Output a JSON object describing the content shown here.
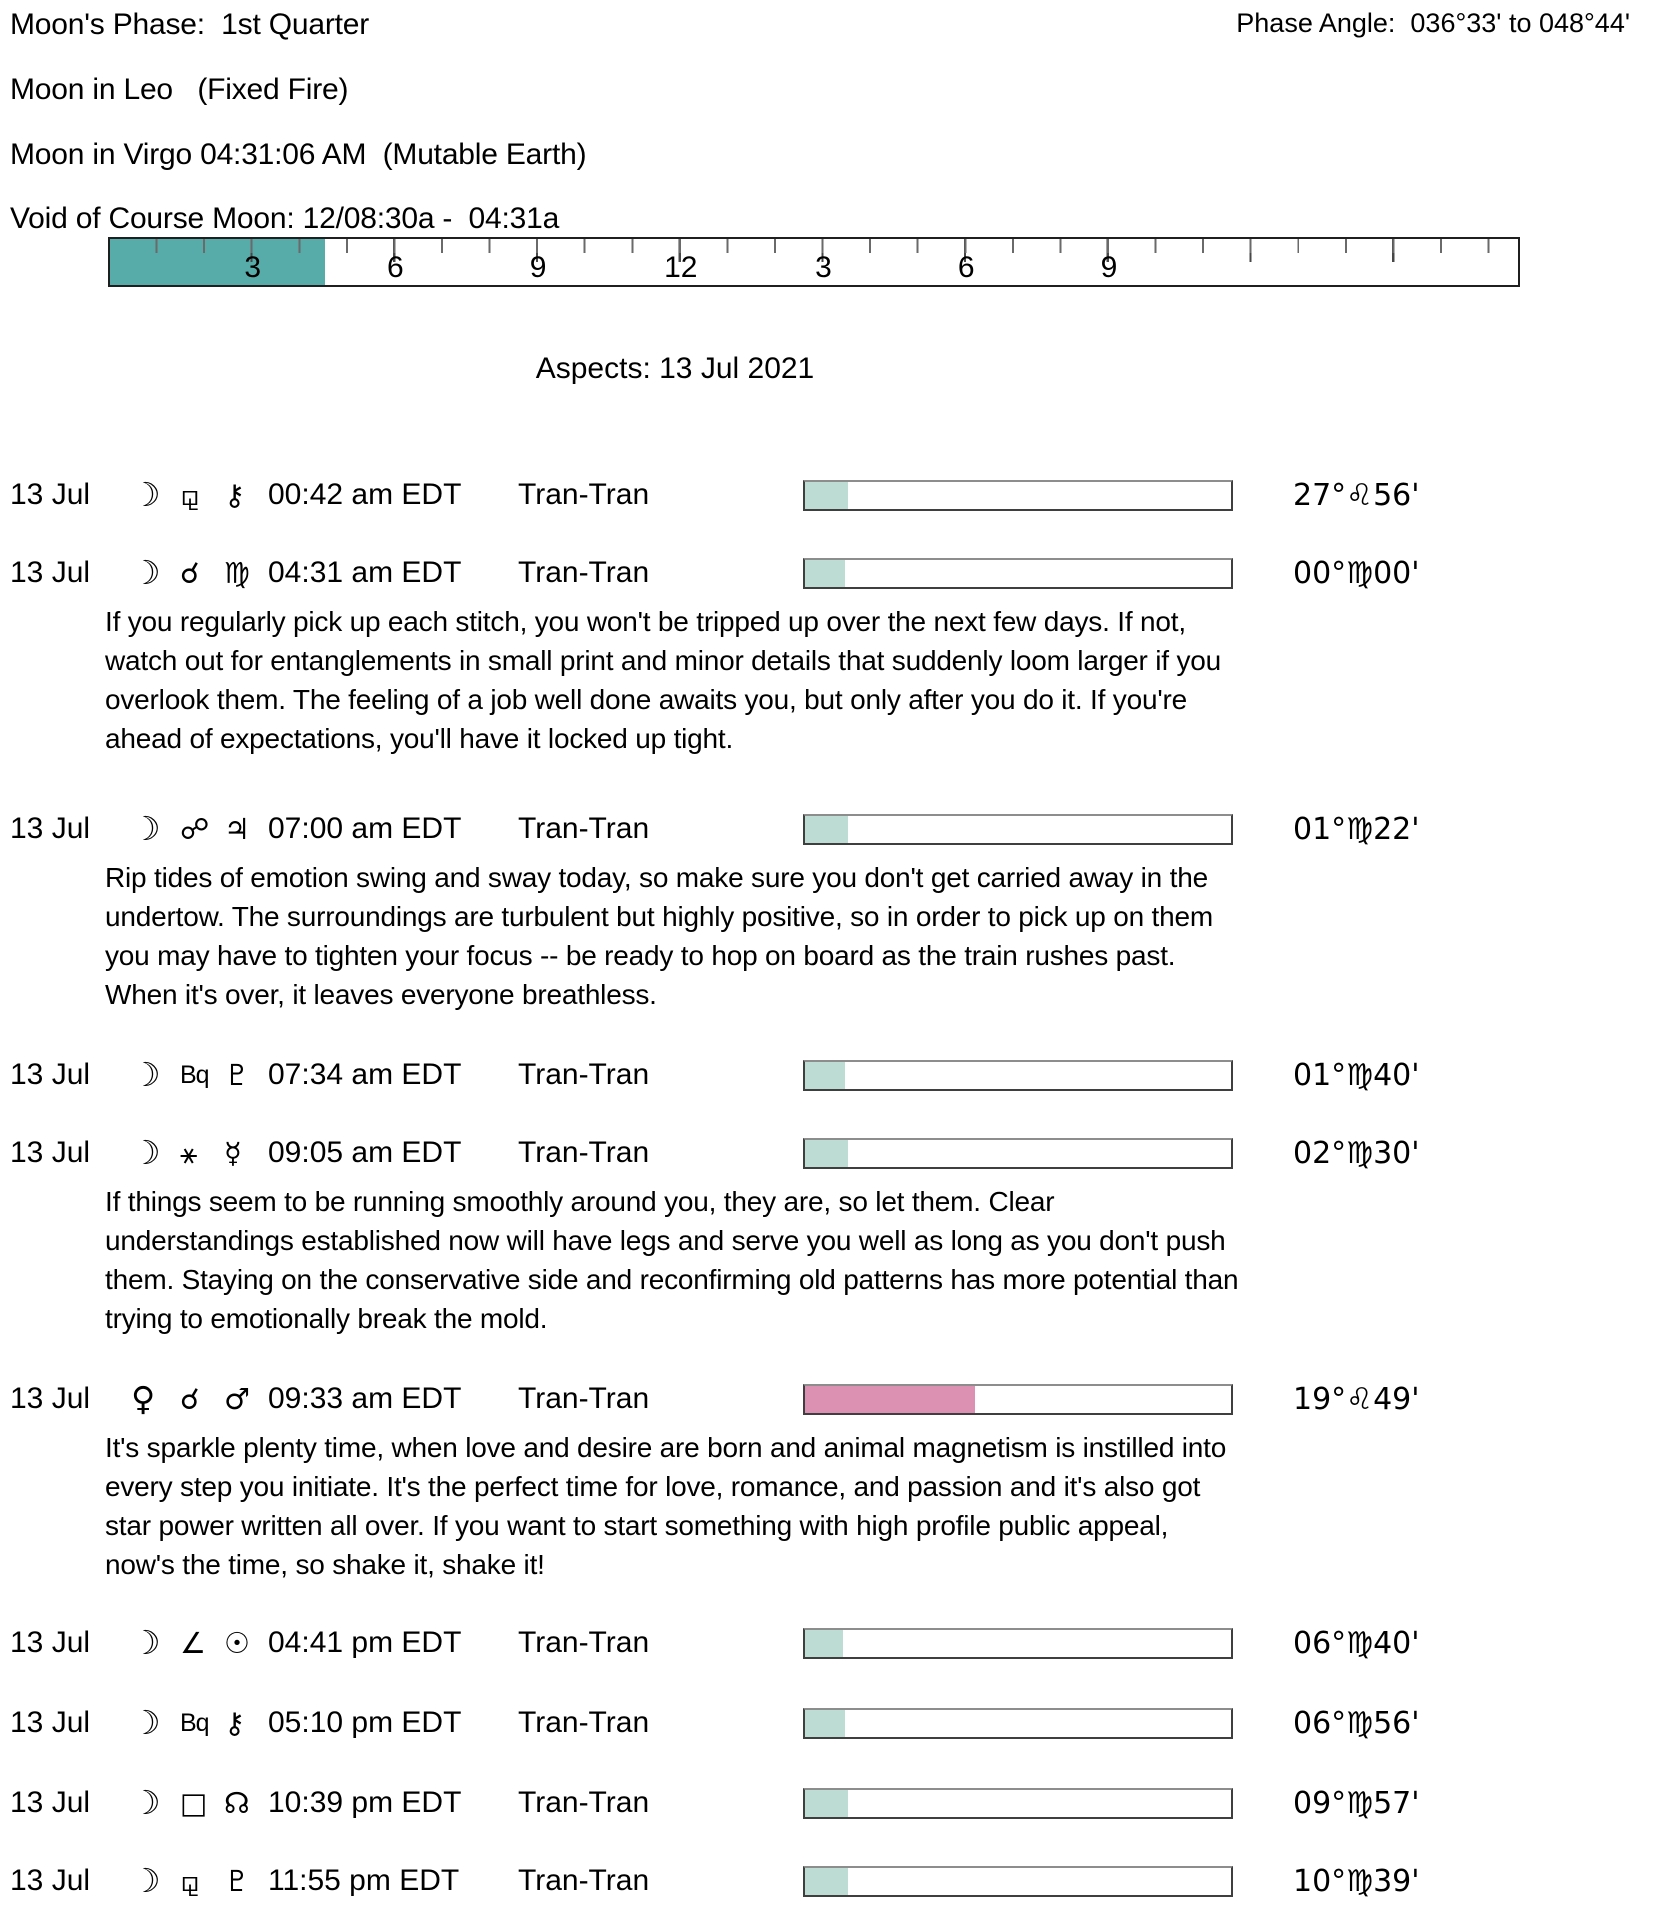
{
  "header": {
    "moon_phase": "Moon's Phase:  1st Quarter",
    "phase_angle": "Phase Angle:  036°33' to 048°44'",
    "moon_sign_current": "Moon in Leo   (Fixed Fire)",
    "moon_sign_next": "Moon in Virgo 04:31:06 AM  (Mutable Earth)",
    "void_of_course": "Void of Course Moon: 12/08:30a -  04:31a"
  },
  "ruler": {
    "total_hours": 29.6,
    "void_fill_hours": 4.52,
    "fill_color": "#57aba8",
    "labels": [
      {
        "hour": 3,
        "text": "3"
      },
      {
        "hour": 6,
        "text": "6"
      },
      {
        "hour": 9,
        "text": "9"
      },
      {
        "hour": 12,
        "text": "12"
      },
      {
        "hour": 15,
        "text": "3"
      },
      {
        "hour": 18,
        "text": "6"
      },
      {
        "hour": 21,
        "text": "9"
      }
    ]
  },
  "aspects": {
    "title": "Aspects: 13 Jul 2021",
    "teal_bar_color": "#bddcd3",
    "pink_bar_color": "#dc91b2",
    "rows": [
      {
        "date": "13 Jul",
        "body": {
          "name": "moon-icon",
          "char": "☽"
        },
        "aspect": {
          "name": "sesquiquadrate-icon",
          "char": "⚼"
        },
        "target": {
          "name": "chiron-icon",
          "char": "⚷"
        },
        "time": "00:42 am EDT",
        "type": "Tran-Tran",
        "bar": {
          "fill_percent": 10,
          "color": "#bddcd3"
        },
        "degree": "27°♌56'",
        "note": ""
      },
      {
        "date": "13 Jul",
        "body": {
          "name": "moon-icon",
          "char": "☽"
        },
        "aspect": {
          "name": "conjunction-icon",
          "char": "☌"
        },
        "target": {
          "name": "virgo-icon",
          "char": "♍"
        },
        "time": "04:31 am EDT",
        "type": "Tran-Tran",
        "bar": {
          "fill_percent": 9.5,
          "color": "#bddcd3"
        },
        "degree": "00°♍00'",
        "note": "If you regularly pick up each stitch, you won't be tripped up over the next few days. If not,\nwatch out for entanglements in small print and minor details that suddenly loom larger if you\noverlook them. The feeling of a job well done awaits you, but only after you do it. If you're\nahead of expectations, you'll have it locked up tight."
      },
      {
        "date": "13 Jul",
        "body": {
          "name": "moon-icon",
          "char": "☽"
        },
        "aspect": {
          "name": "opposition-icon",
          "char": "☍"
        },
        "target": {
          "name": "jupiter-icon",
          "char": "♃"
        },
        "time": "07:00 am EDT",
        "type": "Tran-Tran",
        "bar": {
          "fill_percent": 10,
          "color": "#bddcd3"
        },
        "degree": "01°♍22'",
        "note": "Rip tides of emotion swing and sway today, so make sure you don't get carried away in the\nundertow. The surroundings are turbulent but highly positive, so in order to pick up on them\nyou may have to tighten your focus -- be ready to hop on board as the train rushes past.\nWhen it's over, it leaves everyone breathless."
      },
      {
        "date": "13 Jul",
        "body": {
          "name": "moon-icon",
          "char": "☽"
        },
        "aspect": {
          "name": "biquintile-label",
          "char": "Bq"
        },
        "target": {
          "name": "pluto-icon",
          "char": "♇"
        },
        "time": "07:34 am EDT",
        "type": "Tran-Tran",
        "bar": {
          "fill_percent": 9.5,
          "color": "#bddcd3"
        },
        "degree": "01°♍40'",
        "note": ""
      },
      {
        "date": "13 Jul",
        "body": {
          "name": "moon-icon",
          "char": "☽"
        },
        "aspect": {
          "name": "sextile-icon",
          "char": "⚹"
        },
        "target": {
          "name": "mercury-icon",
          "char": "☿"
        },
        "time": "09:05 am EDT",
        "type": "Tran-Tran",
        "bar": {
          "fill_percent": 10,
          "color": "#bddcd3"
        },
        "degree": "02°♍30'",
        "note": "If things seem to be running smoothly around you, they are, so let them. Clear\nunderstandings established now will have legs and serve you well as long as you don't push\nthem. Staying on the conservative side and reconfirming old patterns has more potential than\ntrying to emotionally break the mold."
      },
      {
        "date": "13 Jul",
        "body": {
          "name": "venus-icon",
          "char": "♀"
        },
        "aspect": {
          "name": "conjunction-icon",
          "char": "☌"
        },
        "target": {
          "name": "mars-icon",
          "char": "♂"
        },
        "time": "09:33 am EDT",
        "type": "Tran-Tran",
        "bar": {
          "fill_percent": 40,
          "color": "#dc91b2"
        },
        "degree": "19°♌49'",
        "note": "It's sparkle plenty time, when love and desire are born and animal magnetism is instilled into\nevery step you initiate. It's the perfect time for love, romance, and passion and it's also got\nstar power written all over. If you want to start something with high profile public appeal,\nnow's the time, so shake it, shake it!"
      },
      {
        "date": "13 Jul",
        "body": {
          "name": "moon-icon",
          "char": "☽"
        },
        "aspect": {
          "name": "semisquare-icon",
          "char": "∠"
        },
        "target": {
          "name": "sun-icon",
          "char": "☉"
        },
        "time": "04:41 pm EDT",
        "type": "Tran-Tran",
        "bar": {
          "fill_percent": 9,
          "color": "#bddcd3"
        },
        "degree": "06°♍40'",
        "note": ""
      },
      {
        "date": "13 Jul",
        "body": {
          "name": "moon-icon",
          "char": "☽"
        },
        "aspect": {
          "name": "biquintile-label",
          "char": "Bq"
        },
        "target": {
          "name": "chiron-icon",
          "char": "⚷"
        },
        "time": "05:10 pm EDT",
        "type": "Tran-Tran",
        "bar": {
          "fill_percent": 9.5,
          "color": "#bddcd3"
        },
        "degree": "06°♍56'",
        "note": ""
      },
      {
        "date": "13 Jul",
        "body": {
          "name": "moon-icon",
          "char": "☽"
        },
        "aspect": {
          "name": "square-icon",
          "char": "□"
        },
        "target": {
          "name": "north-node-icon",
          "char": "☊"
        },
        "time": "10:39 pm EDT",
        "type": "Tran-Tran",
        "bar": {
          "fill_percent": 10,
          "color": "#bddcd3"
        },
        "degree": "09°♍57'",
        "note": ""
      },
      {
        "date": "13 Jul",
        "body": {
          "name": "moon-icon",
          "char": "☽"
        },
        "aspect": {
          "name": "sesquiquadrate-icon",
          "char": "⚼"
        },
        "target": {
          "name": "pluto-icon",
          "char": "♇"
        },
        "time": "11:55 pm EDT",
        "type": "Tran-Tran",
        "bar": {
          "fill_percent": 10,
          "color": "#bddcd3"
        },
        "degree": "10°♍39'",
        "note": ""
      }
    ]
  }
}
